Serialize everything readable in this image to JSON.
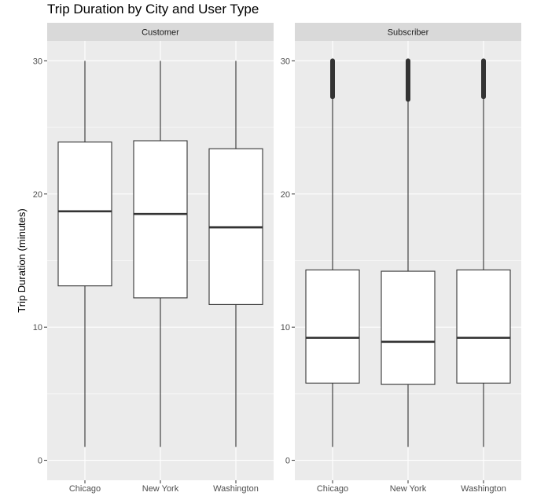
{
  "chart_data": {
    "type": "boxplot",
    "title": "Trip Duration by City and User Type",
    "xlabel": "",
    "ylabel": "Trip Duration (minutes)",
    "ylim": [
      -1.5,
      31.5
    ],
    "yticks": [
      0,
      10,
      20,
      30
    ],
    "categories": [
      "Chicago",
      "New York",
      "Washington"
    ],
    "grid": true,
    "facets": [
      {
        "name": "Customer",
        "boxes": [
          {
            "category": "Chicago",
            "whisker_low": 1,
            "q1": 13.1,
            "median": 18.7,
            "q3": 23.9,
            "whisker_high": 30,
            "outliers_range": null
          },
          {
            "category": "New York",
            "whisker_low": 1,
            "q1": 12.2,
            "median": 18.5,
            "q3": 24.0,
            "whisker_high": 30,
            "outliers_range": null
          },
          {
            "category": "Washington",
            "whisker_low": 1,
            "q1": 11.7,
            "median": 17.5,
            "q3": 23.4,
            "whisker_high": 30,
            "outliers_range": null
          }
        ]
      },
      {
        "name": "Subscriber",
        "boxes": [
          {
            "category": "Chicago",
            "whisker_low": 1,
            "q1": 5.8,
            "median": 9.2,
            "q3": 14.3,
            "whisker_high": 27.3,
            "outliers_range": [
              27.3,
              30
            ]
          },
          {
            "category": "New York",
            "whisker_low": 1,
            "q1": 5.7,
            "median": 8.9,
            "q3": 14.2,
            "whisker_high": 27.1,
            "outliers_range": [
              27.1,
              30
            ]
          },
          {
            "category": "Washington",
            "whisker_low": 1,
            "q1": 5.8,
            "median": 9.2,
            "q3": 14.3,
            "whisker_high": 27.3,
            "outliers_range": [
              27.3,
              30
            ]
          }
        ]
      }
    ],
    "colors": {
      "panel_bg": "#ebebeb",
      "strip_bg": "#d9d9d9",
      "grid": "#ffffff",
      "box_fill": "#ffffff",
      "box_line": "#333333"
    }
  }
}
